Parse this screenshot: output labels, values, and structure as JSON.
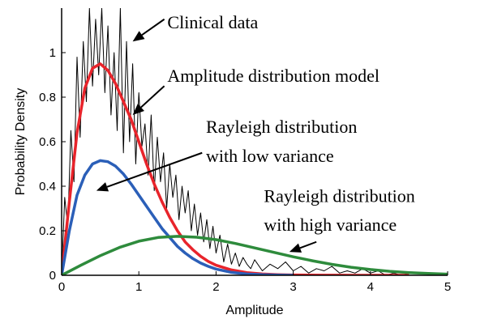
{
  "chart_data": {
    "type": "line",
    "xlabel": "Amplitude",
    "ylabel": "Probability Density",
    "xlim": [
      0,
      5
    ],
    "ylim": [
      0,
      1.2
    ],
    "x_ticks": [
      "0",
      "1",
      "2",
      "3",
      "4",
      "5"
    ],
    "y_ticks": [
      "0",
      "0.2",
      "0.4",
      "0.6",
      "0.8",
      "1"
    ],
    "grid": false,
    "series": [
      {
        "color": "#000000",
        "x": [
          0.0,
          0.04,
          0.08,
          0.12,
          0.16,
          0.2,
          0.24,
          0.28,
          0.32,
          0.36,
          0.4,
          0.44,
          0.48,
          0.52,
          0.56,
          0.6,
          0.64,
          0.68,
          0.72,
          0.76,
          0.8,
          0.84,
          0.88,
          0.92,
          0.96,
          1.0,
          1.04,
          1.08,
          1.12,
          1.16,
          1.2,
          1.24,
          1.28,
          1.32,
          1.36,
          1.4,
          1.44,
          1.48,
          1.52,
          1.56,
          1.6,
          1.64,
          1.68,
          1.72,
          1.76,
          1.8,
          1.84,
          1.88,
          1.92,
          1.96,
          2.0,
          2.05,
          2.1,
          2.15,
          2.2,
          2.25,
          2.3,
          2.35,
          2.4,
          2.45,
          2.5,
          2.6,
          2.7,
          2.8,
          2.9,
          3.0,
          3.1,
          3.2,
          3.3,
          3.4,
          3.5,
          3.6,
          3.7,
          3.8,
          3.9,
          4.0,
          4.1,
          4.2,
          4.3,
          4.4,
          4.5,
          5.0
        ],
        "y": [
          0.0,
          0.35,
          0.22,
          0.65,
          0.42,
          0.98,
          0.62,
          1.05,
          0.78,
          1.2,
          0.85,
          1.15,
          0.9,
          1.2,
          0.82,
          1.12,
          0.72,
          1.0,
          0.65,
          1.2,
          0.55,
          1.05,
          0.6,
          0.95,
          0.5,
          0.82,
          0.58,
          0.68,
          0.45,
          0.72,
          0.38,
          0.62,
          0.42,
          0.55,
          0.3,
          0.5,
          0.35,
          0.45,
          0.25,
          0.4,
          0.28,
          0.38,
          0.2,
          0.32,
          0.18,
          0.28,
          0.15,
          0.25,
          0.12,
          0.22,
          0.1,
          0.18,
          0.06,
          0.14,
          0.05,
          0.1,
          0.04,
          0.08,
          0.05,
          0.03,
          0.07,
          0.02,
          0.05,
          0.03,
          0.06,
          0.02,
          0.04,
          0.01,
          0.03,
          0.02,
          0.04,
          0.01,
          0.02,
          0.01,
          0.03,
          0.01,
          0.02,
          0.0,
          0.01,
          0.0,
          0.01,
          0.0
        ]
      },
      {
        "color": "#e8242b",
        "x": [
          0.0,
          0.1,
          0.2,
          0.3,
          0.4,
          0.5,
          0.6,
          0.7,
          0.8,
          0.9,
          1.0,
          1.1,
          1.2,
          1.3,
          1.4,
          1.5,
          1.6,
          1.7,
          1.8,
          1.9,
          2.0,
          2.2,
          2.4,
          2.6,
          2.8,
          3.0,
          3.2,
          3.4,
          3.6,
          3.8,
          4.0,
          4.5
        ],
        "y": [
          0.0,
          0.33,
          0.64,
          0.84,
          0.93,
          0.95,
          0.92,
          0.86,
          0.78,
          0.7,
          0.6,
          0.5,
          0.41,
          0.33,
          0.26,
          0.2,
          0.15,
          0.115,
          0.085,
          0.062,
          0.045,
          0.024,
          0.012,
          0.006,
          0.003,
          0.0015,
          0.0008,
          0.0004,
          0.0002,
          0.0001,
          0.0,
          0.0
        ]
      },
      {
        "color": "#2b5fb8",
        "x": [
          0.0,
          0.1,
          0.2,
          0.3,
          0.4,
          0.5,
          0.6,
          0.7,
          0.8,
          0.9,
          1.0,
          1.1,
          1.2,
          1.3,
          1.4,
          1.5,
          1.6,
          1.7,
          1.8,
          1.9,
          2.0,
          2.2,
          2.4,
          2.6,
          2.8,
          3.0
        ],
        "y": [
          0.0,
          0.2,
          0.36,
          0.45,
          0.5,
          0.515,
          0.51,
          0.49,
          0.455,
          0.41,
          0.36,
          0.31,
          0.26,
          0.21,
          0.17,
          0.13,
          0.1,
          0.075,
          0.055,
          0.04,
          0.028,
          0.013,
          0.006,
          0.0025,
          0.001,
          0.0
        ]
      },
      {
        "color": "#2e8b3c",
        "x": [
          0.0,
          0.25,
          0.5,
          0.75,
          1.0,
          1.25,
          1.5,
          1.75,
          2.0,
          2.25,
          2.5,
          2.75,
          3.0,
          3.25,
          3.5,
          3.75,
          4.0,
          4.25,
          4.5,
          4.75,
          5.0
        ],
        "y": [
          0.0,
          0.045,
          0.088,
          0.125,
          0.153,
          0.17,
          0.175,
          0.171,
          0.16,
          0.143,
          0.123,
          0.103,
          0.083,
          0.065,
          0.049,
          0.036,
          0.026,
          0.018,
          0.012,
          0.008,
          0.005
        ]
      }
    ],
    "annotations": [
      {
        "text": "Clinical data",
        "x": 1.37,
        "y": 1.11
      },
      {
        "text": "Amplitude distribution model",
        "x": 1.37,
        "y": 0.87
      },
      {
        "text": "Rayleigh distribution",
        "x": 1.87,
        "y": 0.64
      },
      {
        "text": "with low variance",
        "x": 1.87,
        "y": 0.51
      },
      {
        "text": "Rayleigh distribution",
        "x": 2.62,
        "y": 0.33
      },
      {
        "text": "with high variance",
        "x": 2.62,
        "y": 0.2
      }
    ],
    "arrows": [
      {
        "from": [
          1.33,
          1.15
        ],
        "to": [
          0.92,
          1.05
        ]
      },
      {
        "from": [
          1.33,
          0.85
        ],
        "to": [
          0.92,
          0.72
        ]
      },
      {
        "from": [
          1.82,
          0.55
        ],
        "to": [
          0.45,
          0.38
        ]
      },
      {
        "from": [
          3.3,
          0.15
        ],
        "to": [
          2.95,
          0.105
        ]
      }
    ]
  }
}
